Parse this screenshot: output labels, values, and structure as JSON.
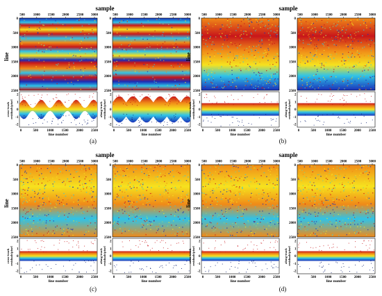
{
  "figure": {
    "captions": [
      "(a)",
      "(b)",
      "(c)",
      "(d)"
    ],
    "sample_label": "sample",
    "line_label": "line",
    "sample_ticks": [
      "500",
      "1000",
      "1500",
      "2000",
      "2500",
      "3000"
    ],
    "line_ticks": [
      "0",
      "500",
      "1000",
      "1500",
      "2000",
      "2500"
    ],
    "residual_xticks": [
      "0",
      "500",
      "1000",
      "1500",
      "2000",
      "2500"
    ],
    "residual_xlabel": "line number",
    "cross_track_label": "cross-track residuals/pixel",
    "along_track_label": "along-track residuals/pixel",
    "residual_yticks": [
      "2",
      "1",
      "0",
      "-1",
      "-2"
    ],
    "colors": {
      "high": "#c8161a",
      "mid_high": "#f08a18",
      "mid": "#f6e21e",
      "mid_low": "#2fc3e8",
      "low": "#1a2fb8",
      "deep_low": "#0a1c6e"
    }
  },
  "chart_data": [
    {
      "type": "scatter",
      "group": "(a)",
      "panel": "cross-track",
      "x_label": "line number",
      "y_label": "cross-track residuals/pixel",
      "xlim": [
        0,
        2500
      ],
      "ylim": [
        -2,
        2
      ],
      "pattern": "strong periodic striping"
    },
    {
      "type": "scatter",
      "group": "(a)",
      "panel": "along-track",
      "x_label": "line number",
      "y_label": "along-track residuals/pixel",
      "xlim": [
        0,
        2500
      ],
      "ylim": [
        -2,
        2
      ],
      "pattern": "strong periodic striping"
    },
    {
      "type": "scatter",
      "group": "(b)",
      "panel": "cross-track",
      "x_label": "line number",
      "y_label": "cross-track residuals/pixel",
      "xlim": [
        0,
        2500
      ],
      "ylim": [
        -2,
        2
      ],
      "pattern": "weak band"
    },
    {
      "type": "scatter",
      "group": "(b)",
      "panel": "along-track",
      "x_label": "line number",
      "y_label": "along-track residuals/pixel",
      "xlim": [
        0,
        2500
      ],
      "ylim": [
        -2,
        2
      ],
      "pattern": "weak band"
    },
    {
      "type": "scatter",
      "group": "(c)",
      "panel": "cross-track",
      "x_label": "line number",
      "y_label": "cross-track residuals/pixel",
      "xlim": [
        0,
        2500
      ],
      "ylim": [
        -2,
        2
      ],
      "pattern": "random"
    },
    {
      "type": "scatter",
      "group": "(c)",
      "panel": "along-track",
      "x_label": "line number",
      "y_label": "along-track residuals/pixel",
      "xlim": [
        0,
        2500
      ],
      "ylim": [
        -2,
        2
      ],
      "pattern": "random"
    },
    {
      "type": "scatter",
      "group": "(d)",
      "panel": "cross-track",
      "x_label": "line number",
      "y_label": "cross-track residuals/pixel",
      "xlim": [
        0,
        2500
      ],
      "ylim": [
        -2,
        2
      ],
      "pattern": "random"
    },
    {
      "type": "scatter",
      "group": "(d)",
      "panel": "along-track",
      "x_label": "line number",
      "y_label": "along-track residuals/pixel",
      "xlim": [
        0,
        2500
      ],
      "ylim": [
        -2,
        2
      ],
      "pattern": "random"
    }
  ]
}
